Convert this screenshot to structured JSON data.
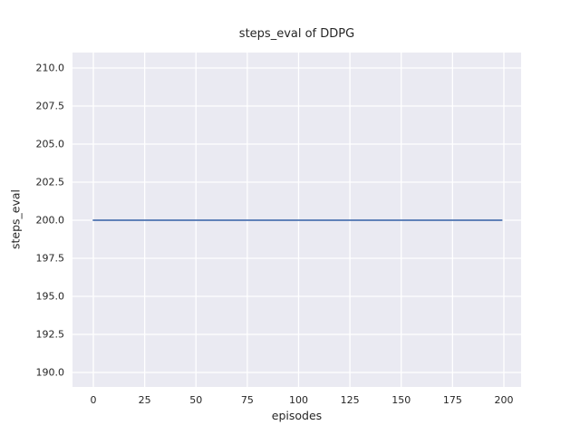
{
  "chart_data": {
    "type": "line",
    "title": "steps_eval of DDPG",
    "xlabel": "episodes",
    "ylabel": "steps_eval",
    "xlim": [
      -10.15,
      208.4
    ],
    "ylim": [
      189.05,
      211.01
    ],
    "xticks": [
      0,
      25,
      50,
      75,
      100,
      125,
      150,
      175,
      200
    ],
    "xtick_labels": [
      "0",
      "25",
      "50",
      "75",
      "100",
      "125",
      "150",
      "175",
      "200"
    ],
    "yticks": [
      190.0,
      192.5,
      195.0,
      197.5,
      200.0,
      202.5,
      205.0,
      207.5,
      210.0
    ],
    "ytick_labels": [
      "190.0",
      "192.5",
      "195.0",
      "197.5",
      "200.0",
      "202.5",
      "205.0",
      "207.5",
      "210.0"
    ],
    "grid": true,
    "legend": false,
    "series": [
      {
        "name": "steps_eval",
        "color": "#4c72b0",
        "x": [
          0,
          199
        ],
        "y": [
          200,
          200
        ],
        "note": "constant value 200 for every evaluation episode from 0 to 199"
      }
    ],
    "style": {
      "plot_background": "#eaeaf2",
      "grid_color": "#ffffff",
      "text_color": "#262626",
      "figure_background": "#ffffff",
      "line_width": 1.8,
      "grid_width": 1.3
    }
  }
}
